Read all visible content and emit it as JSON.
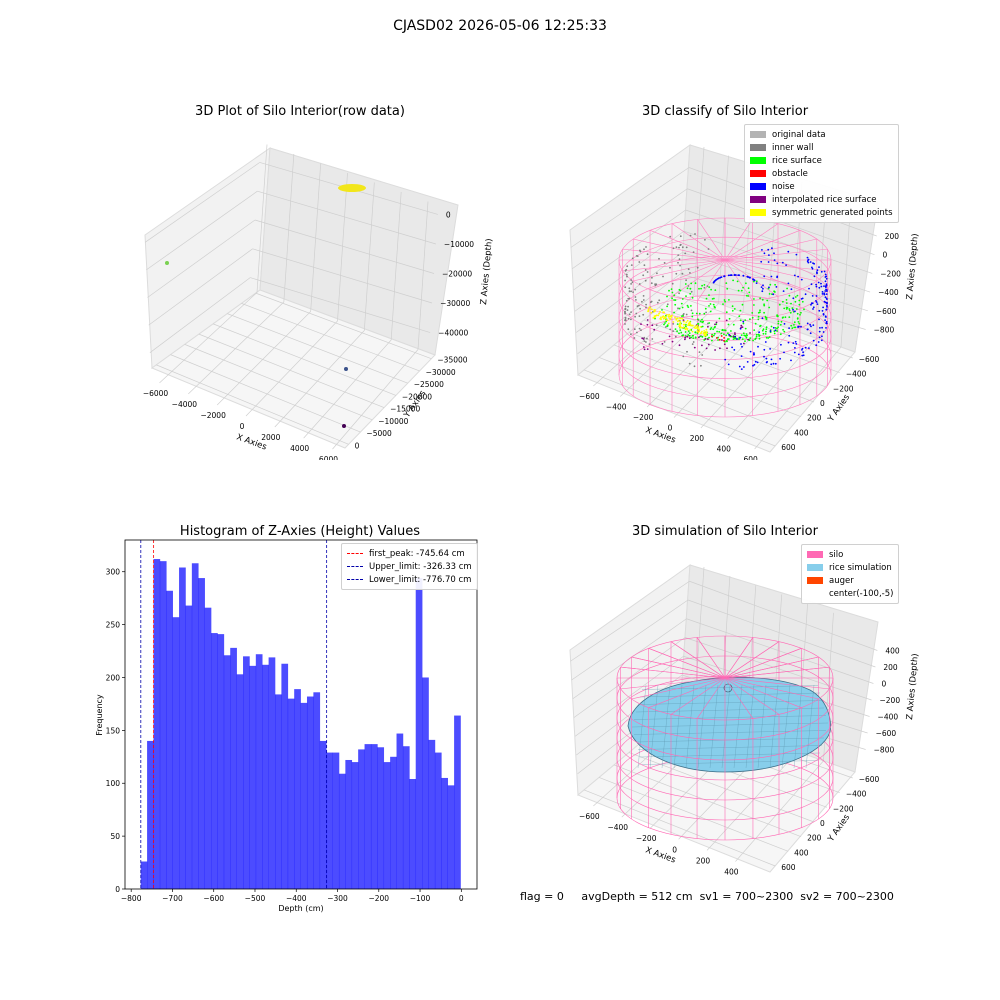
{
  "suptitle": "CJASD02 2026-05-06 12:25:33",
  "status": {
    "flag": "flag = 0",
    "avg_depth": "avgDepth = 512 cm",
    "sv1": "sv1 = 700~2300",
    "sv2": "sv2 = 700~2300"
  },
  "chart_data": [
    {
      "type": "scatter",
      "title": "3D Plot of Silo Interior(row data)",
      "xlabel": "X Axies",
      "ylabel": "Y Axies",
      "zlabel": "Z Axies (Depth)",
      "x_ticks": [
        "−6000",
        "−4000",
        "−2000",
        "0",
        "2000",
        "4000",
        "6000"
      ],
      "y_ticks": [
        "0",
        "−5000",
        "−10000",
        "−15000",
        "−20000",
        "−25000",
        "−30000",
        "−35000"
      ],
      "z_ticks": [
        "0",
        "−10000",
        "−20000",
        "−30000",
        "−40000"
      ],
      "colors": {
        "cluster": "#f2e61a",
        "p1": "#7ad151",
        "p2": "#3b528b",
        "p3": "#440154"
      }
    },
    {
      "type": "scatter",
      "title": "3D classify of Silo Interior",
      "xlabel": "X Axies",
      "ylabel": "Y Axies",
      "zlabel": "Z Axies (Depth)",
      "x_ticks": [
        "−600",
        "−400",
        "−200",
        "0",
        "200",
        "400",
        "600"
      ],
      "y_ticks": [
        "600",
        "400",
        "200",
        "0",
        "−200",
        "−400",
        "−600"
      ],
      "z_ticks": [
        "200",
        "0",
        "−200",
        "−400",
        "−600",
        "−800"
      ],
      "z_tick_partial": "00",
      "legend": [
        {
          "label": "original data",
          "color": "#b3b3b3"
        },
        {
          "label": "inner wall",
          "color": "#808080"
        },
        {
          "label": "rice surface",
          "color": "#00ff00"
        },
        {
          "label": "obstacle",
          "color": "#ff0000"
        },
        {
          "label": "noise",
          "color": "#0000ff"
        },
        {
          "label": "interpolated rice surface",
          "color": "#800080"
        },
        {
          "label": "symmetric generated points",
          "color": "#ffff00"
        }
      ],
      "legend_loc": "upper right",
      "colors": {
        "silo": "#ff80c0"
      }
    },
    {
      "type": "bar",
      "title": "Histogram of Z-Axies (Height) Values",
      "xlabel": "Depth (cm)",
      "ylabel": "Frequency",
      "xlim": [
        -800,
        0
      ],
      "ylim": [
        0,
        330
      ],
      "bin_start": -777,
      "bin_width": 15.5,
      "values": [
        26,
        140,
        312,
        310,
        282,
        257,
        304,
        268,
        308,
        294,
        266,
        242,
        241,
        221,
        228,
        203,
        220,
        211,
        222,
        212,
        219,
        184,
        213,
        180,
        189,
        176,
        182,
        186,
        140,
        129,
        129,
        109,
        122,
        120,
        132,
        137,
        137,
        134,
        120,
        125,
        147,
        135,
        104,
        294,
        200,
        141,
        129,
        105,
        98,
        164
      ],
      "color": "#0000ff",
      "x_ticks": [
        "−800",
        "−700",
        "−600",
        "−500",
        "−400",
        "−300",
        "−200",
        "−100",
        "0"
      ],
      "y_ticks": [
        "0",
        "50",
        "100",
        "150",
        "200",
        "250",
        "300"
      ],
      "vlines": [
        {
          "label": "first_peak: -745.64 cm",
          "value": -745.64,
          "color": "#ff0000"
        },
        {
          "label": "Upper_limit: -326.33 cm",
          "value": -326.33,
          "color": "#0000aa"
        },
        {
          "label": "Lower_limit: -776.70 cm",
          "value": -776.7,
          "color": "#0000aa"
        }
      ],
      "legend_loc": "upper right"
    },
    {
      "type": "area",
      "title": "3D simulation of Silo Interior",
      "xlabel": "X Axies",
      "ylabel": "Y Axies",
      "zlabel": "Z Axies (Depth)",
      "x_ticks": [
        "−600",
        "−400",
        "−200",
        "0",
        "200",
        "400"
      ],
      "y_ticks": [
        "600",
        "400",
        "200",
        "0",
        "−200",
        "−400",
        "−600"
      ],
      "z_ticks": [
        "400",
        "200",
        "0",
        "−200",
        "−400",
        "−600",
        "−800"
      ],
      "legend": [
        {
          "label": "silo",
          "color": "#ff69b4"
        },
        {
          "label": "rice simulation",
          "color": "#87ceeb"
        },
        {
          "label": "auger",
          "color": "#ff4500"
        },
        {
          "label": "center(-100,-5)",
          "color": ""
        }
      ],
      "legend_loc": "upper right"
    }
  ]
}
